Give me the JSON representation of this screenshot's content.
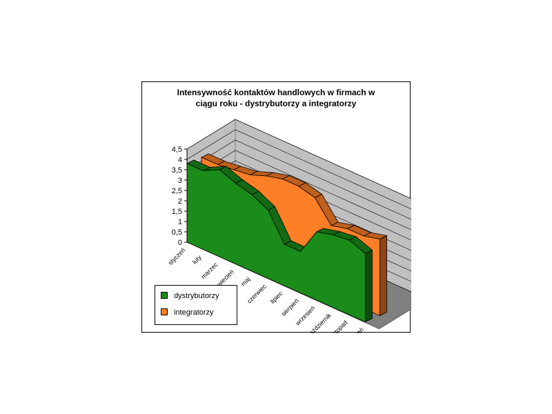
{
  "chart_data": {
    "type": "area",
    "title_lines": [
      "Intensywność kontaktów handlowych w firmach w",
      "ciągu roku - dystrybutorzy a integratorzy"
    ],
    "categories": [
      "styczeń",
      "luty",
      "marzec",
      "kwiecień",
      "maj",
      "czerwiec",
      "lipiec",
      "sierpień",
      "wrzesień",
      "październik",
      "listopad",
      "grudzień"
    ],
    "series": [
      {
        "name": "dystrybutorzy",
        "color": "#1a8c1a",
        "values": [
          3.8,
          3.8,
          4.2,
          3.9,
          3.7,
          3.3,
          2.0,
          2.0,
          3.3,
          3.5,
          3.6,
          3.3
        ]
      },
      {
        "name": "integratorzy",
        "color": "#ff7f27",
        "values": [
          3.8,
          3.8,
          3.9,
          4.0,
          4.3,
          4.5,
          4.5,
          4.3,
          3.3,
          3.5,
          3.5,
          3.7
        ]
      }
    ],
    "yticks": [
      "0",
      "0,5",
      "1",
      "1,5",
      "2",
      "2,5",
      "3",
      "3,5",
      "4",
      "4,5"
    ],
    "ylim": [
      0,
      4.5
    ],
    "grid": true,
    "legend_position": "bottom-left",
    "chart_style": "3d-area"
  }
}
